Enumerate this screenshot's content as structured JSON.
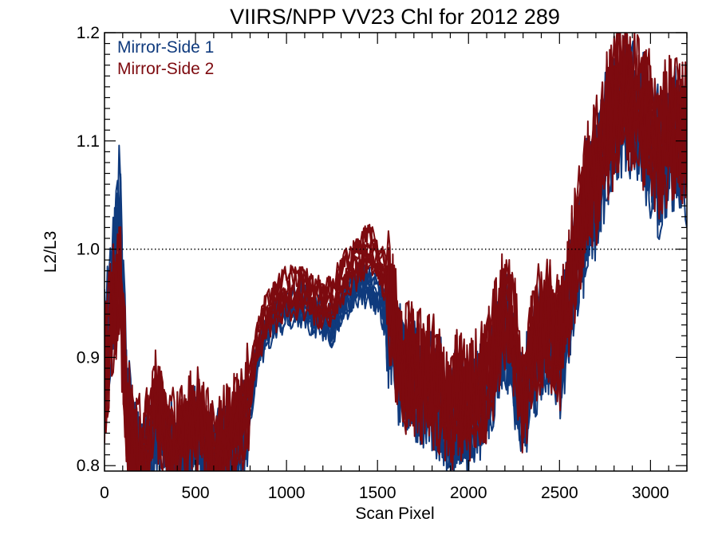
{
  "chart_data": {
    "type": "line",
    "title": "VIIRS/NPP VV23 Chl for 2012 289",
    "xlabel": "Scan Pixel",
    "ylabel": "L2/L3",
    "xlim": [
      0,
      3200
    ],
    "ylim": [
      0.795,
      1.2
    ],
    "xticks": [
      0,
      500,
      1000,
      1500,
      2000,
      2500,
      3000
    ],
    "xtick_labels": [
      "0",
      "500",
      "1000",
      "1500",
      "2000",
      "2500",
      "3000"
    ],
    "yticks": [
      0.8,
      0.9,
      1.0,
      1.1,
      1.2
    ],
    "ytick_labels": [
      "0.8",
      "0.9",
      "1.0",
      "1.1",
      "1.2"
    ],
    "reference_line": {
      "y": 1.0,
      "style": "dotted"
    },
    "legend_position": "top-left",
    "series": [
      {
        "name": "Mirror-Side 1",
        "color": "#0f3a7d",
        "x": [
          0,
          40,
          80,
          120,
          160,
          200,
          240,
          280,
          320,
          360,
          400,
          450,
          500,
          550,
          600,
          650,
          700,
          750,
          800,
          850,
          900,
          950,
          1000,
          1050,
          1100,
          1150,
          1200,
          1250,
          1300,
          1350,
          1400,
          1450,
          1500,
          1550,
          1600,
          1650,
          1700,
          1750,
          1800,
          1850,
          1900,
          1950,
          2000,
          2050,
          2100,
          2150,
          2200,
          2250,
          2300,
          2350,
          2400,
          2450,
          2500,
          2550,
          2600,
          2650,
          2700,
          2750,
          2800,
          2850,
          2900,
          2950,
          3000,
          3050,
          3100,
          3150,
          3200
        ],
        "values": [
          0.9,
          0.95,
          1.05,
          0.86,
          0.8,
          0.8,
          0.82,
          0.84,
          0.83,
          0.82,
          0.81,
          0.82,
          0.84,
          0.82,
          0.8,
          0.81,
          0.82,
          0.83,
          0.86,
          0.91,
          0.93,
          0.94,
          0.95,
          0.95,
          0.95,
          0.94,
          0.94,
          0.93,
          0.95,
          0.96,
          0.97,
          0.97,
          0.96,
          0.94,
          0.9,
          0.88,
          0.88,
          0.87,
          0.87,
          0.86,
          0.84,
          0.86,
          0.85,
          0.86,
          0.87,
          0.9,
          0.93,
          0.9,
          0.85,
          0.9,
          0.92,
          0.92,
          0.9,
          0.95,
          1.0,
          1.04,
          1.06,
          1.1,
          1.12,
          1.14,
          1.13,
          1.12,
          1.1,
          1.08,
          1.1,
          1.1,
          1.09
        ]
      },
      {
        "name": "Mirror-Side 2",
        "color": "#7d0a0f",
        "x": [
          0,
          40,
          80,
          120,
          160,
          200,
          240,
          280,
          320,
          360,
          400,
          450,
          500,
          550,
          600,
          650,
          700,
          750,
          800,
          850,
          900,
          950,
          1000,
          1050,
          1100,
          1150,
          1200,
          1250,
          1300,
          1350,
          1400,
          1450,
          1500,
          1550,
          1600,
          1650,
          1700,
          1750,
          1800,
          1850,
          1900,
          1950,
          2000,
          2050,
          2100,
          2150,
          2200,
          2250,
          2300,
          2350,
          2400,
          2450,
          2500,
          2550,
          2600,
          2650,
          2700,
          2750,
          2800,
          2850,
          2900,
          2950,
          3000,
          3050,
          3100,
          3150,
          3200
        ],
        "values": [
          0.89,
          0.93,
          0.98,
          0.85,
          0.8,
          0.8,
          0.83,
          0.86,
          0.84,
          0.82,
          0.82,
          0.83,
          0.85,
          0.83,
          0.81,
          0.82,
          0.83,
          0.84,
          0.87,
          0.92,
          0.94,
          0.95,
          0.96,
          0.96,
          0.96,
          0.95,
          0.95,
          0.95,
          0.97,
          0.98,
          0.99,
          1.0,
          0.99,
          0.97,
          0.92,
          0.89,
          0.89,
          0.88,
          0.88,
          0.87,
          0.85,
          0.87,
          0.86,
          0.87,
          0.88,
          0.91,
          0.95,
          0.92,
          0.86,
          0.91,
          0.93,
          0.93,
          0.91,
          0.96,
          1.01,
          1.05,
          1.07,
          1.11,
          1.13,
          1.15,
          1.14,
          1.13,
          1.11,
          1.09,
          1.11,
          1.11,
          1.1
        ]
      }
    ]
  }
}
